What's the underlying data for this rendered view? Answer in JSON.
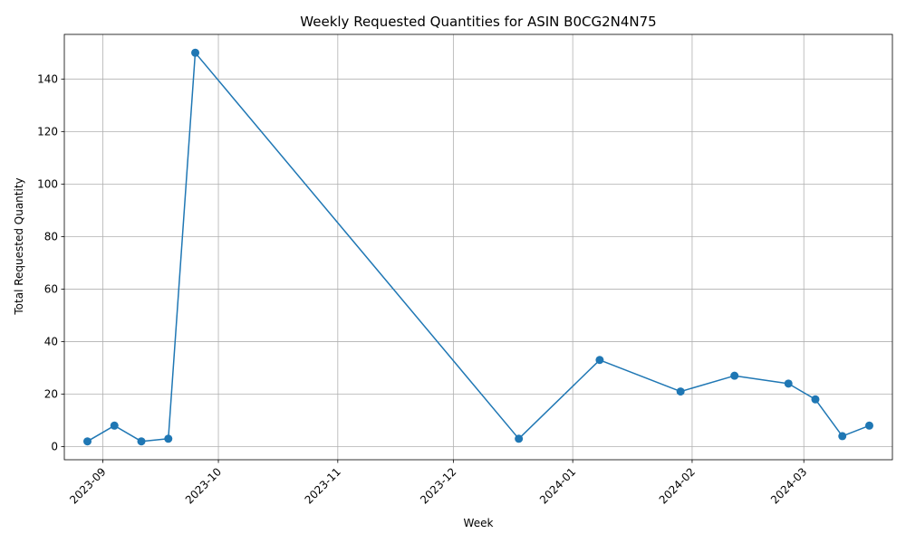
{
  "chart_data": {
    "type": "line",
    "title": "Weekly Requested Quantities for ASIN B0CG2N4N75",
    "xlabel": "Week",
    "ylabel": "Total Requested Quantity",
    "x_tick_labels": [
      "2023-09",
      "2023-10",
      "2023-11",
      "2023-12",
      "2024-01",
      "2024-02",
      "2024-03"
    ],
    "x_ticks": [
      "2023-09-01",
      "2023-10-01",
      "2023-11-01",
      "2023-12-01",
      "2024-01-01",
      "2024-02-01",
      "2024-03-01"
    ],
    "y_ticks": [
      0,
      20,
      40,
      60,
      80,
      100,
      120,
      140
    ],
    "xlim": [
      "2023-08-22",
      "2024-03-24"
    ],
    "ylim": [
      -5,
      157
    ],
    "grid": true,
    "color": "#1f77b4",
    "marker": "circle",
    "series": [
      {
        "x": [
          "2023-08-28",
          "2023-09-04",
          "2023-09-11",
          "2023-09-18",
          "2023-09-25",
          "2023-12-18",
          "2024-01-08",
          "2024-01-29",
          "2024-02-12",
          "2024-02-26",
          "2024-03-04",
          "2024-03-11",
          "2024-03-18"
        ],
        "values": [
          2,
          8,
          2,
          3,
          150,
          3,
          33,
          21,
          27,
          24,
          18,
          4,
          8
        ]
      }
    ]
  }
}
